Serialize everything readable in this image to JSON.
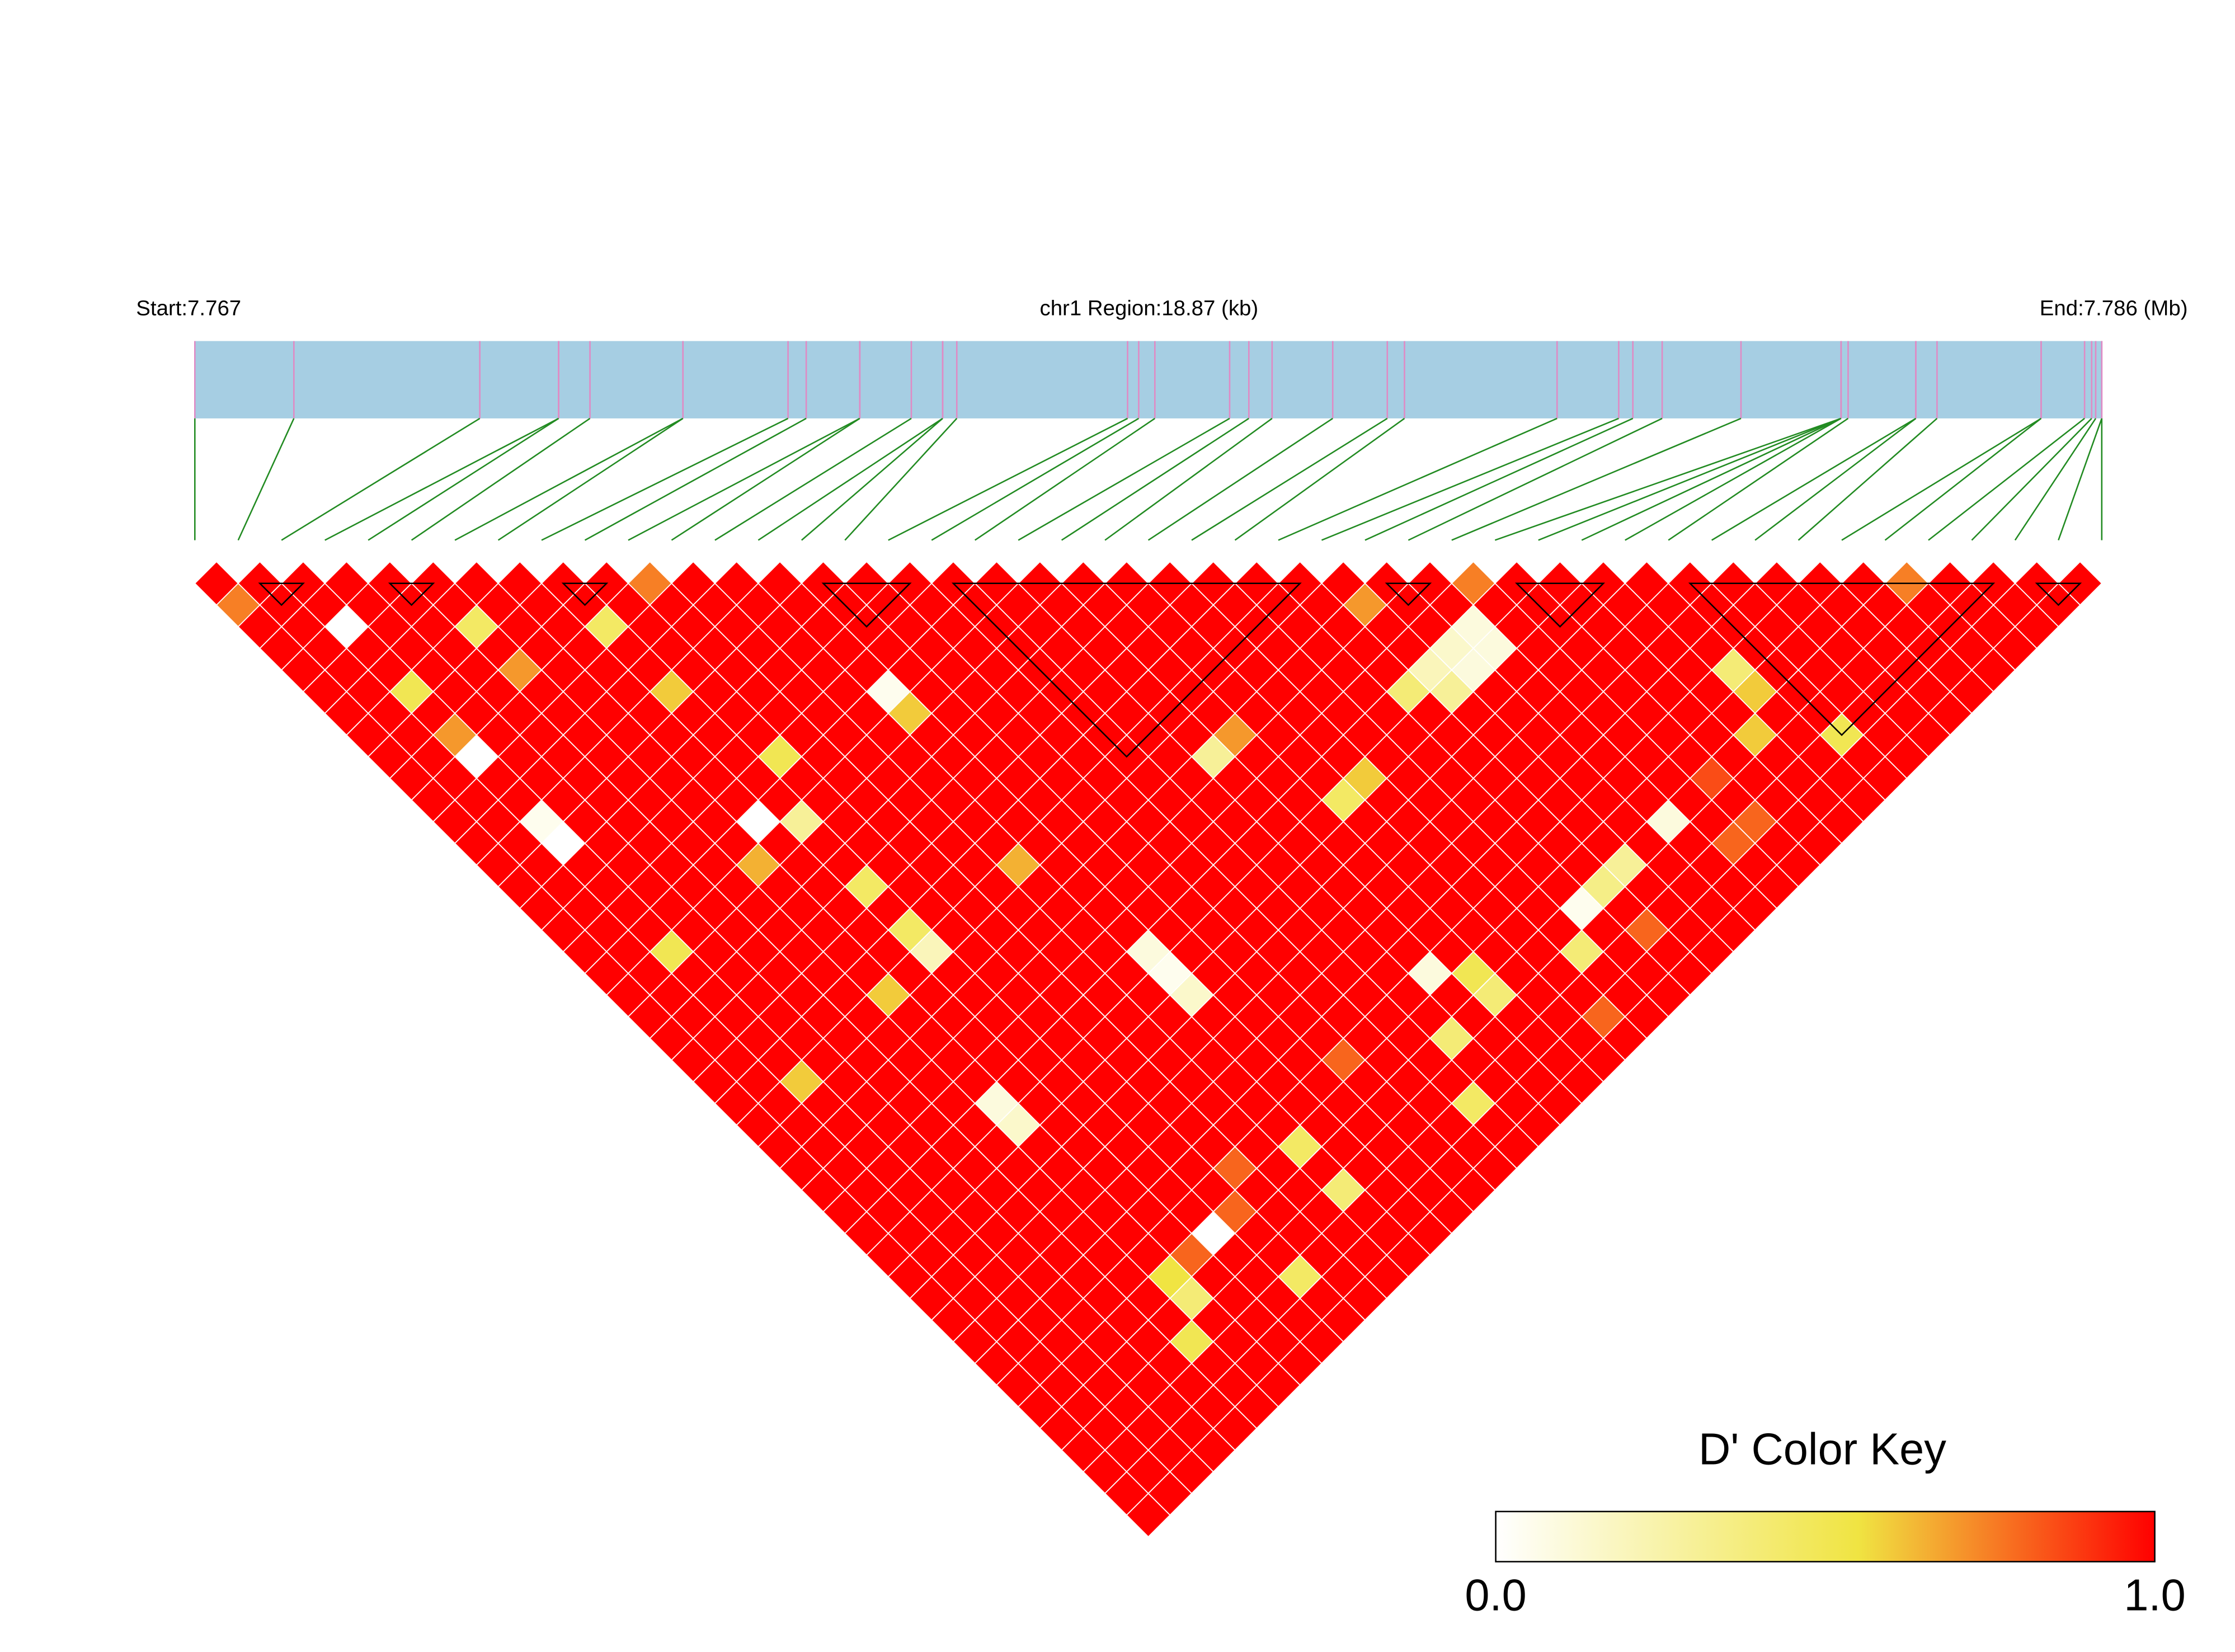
{
  "chart_data": {
    "type": "ld_heatmap",
    "start_label": "Start:7.767",
    "region_label": "chr1 Region:18.87 (kb)",
    "end_label": "End:7.786 (Mb)",
    "xlim": [
      0,
      18.87
    ],
    "snp_positions_kb": [
      0,
      0.98,
      2.82,
      3.6,
      3.6,
      3.91,
      4.83,
      4.83,
      5.87,
      6.05,
      6.58,
      6.58,
      7.09,
      7.4,
      7.4,
      7.54,
      9.23,
      9.34,
      9.5,
      10.24,
      10.43,
      10.66,
      11.26,
      11.8,
      11.97,
      13.48,
      14.09,
      14.23,
      14.52,
      15.3,
      16.29,
      16.29,
      16.29,
      16.29,
      16.36,
      17.03,
      17.03,
      17.24,
      18.27,
      18.27,
      18.7,
      18.77,
      18.81,
      18.87,
      18.87
    ],
    "bar_color": "#a6cee3",
    "snp_line_color": "#e08ac4",
    "connector_color": "#228b22",
    "block_color": "#000000",
    "blocks": [
      [
        1,
        3
      ],
      [
        4,
        6
      ],
      [
        8,
        10
      ],
      [
        14,
        17
      ],
      [
        17,
        26
      ],
      [
        27,
        29
      ],
      [
        30,
        33
      ],
      [
        34,
        42
      ],
      [
        42,
        44
      ]
    ],
    "colormap": [
      [
        0,
        "#ffffff"
      ],
      [
        0.55,
        "#f0e442"
      ],
      [
        1,
        "#ff0000"
      ]
    ],
    "colorbar_title": "D' Color Key",
    "colorbar_lim": [
      0,
      1
    ],
    "colorbar_ticks": [
      {
        "value": 0,
        "label": "0.0"
      },
      {
        "value": 1,
        "label": "1.0"
      }
    ],
    "values": [
      [
        1,
        1,
        1,
        1,
        1,
        1,
        1,
        1,
        1,
        1,
        0.75,
        1,
        1,
        1,
        1,
        1,
        1,
        1,
        1,
        1,
        1,
        1,
        1,
        1,
        1,
        1,
        1,
        1,
        1,
        0.75,
        1,
        1,
        1,
        1,
        1,
        1,
        1,
        1,
        1,
        0.75,
        1,
        1,
        1,
        1
      ],
      [
        0.75,
        1,
        1,
        1,
        1,
        1,
        1,
        1,
        1,
        1,
        1,
        1,
        1,
        1,
        1,
        1,
        1,
        1,
        1,
        1,
        1,
        1,
        1,
        1,
        1,
        1,
        0.7,
        1,
        1,
        1,
        1,
        1,
        1,
        1,
        1,
        1,
        1,
        1,
        1,
        1,
        1,
        1,
        1
      ],
      [
        1,
        1,
        0,
        1,
        1,
        0.45,
        1,
        1,
        0.45,
        1,
        1,
        1,
        1,
        1,
        1,
        1,
        1,
        1,
        1,
        1,
        1,
        1,
        1,
        1,
        1,
        1,
        1,
        1,
        0.1,
        1,
        1,
        1,
        1,
        1,
        1,
        1,
        1,
        1,
        1,
        1,
        1,
        1
      ],
      [
        1,
        1,
        1,
        1,
        1,
        1,
        1,
        1,
        1,
        1,
        1,
        1,
        1,
        1,
        1,
        1,
        1,
        1,
        1,
        1,
        1,
        1,
        1,
        1,
        1,
        1,
        1,
        0.15,
        0.1,
        1,
        1,
        1,
        1,
        1,
        1,
        1,
        1,
        1,
        1,
        1,
        1
      ],
      [
        1,
        1,
        1,
        1,
        1,
        0.7,
        1,
        1,
        1,
        1,
        1,
        1,
        1,
        1,
        1,
        1,
        1,
        1,
        1,
        1,
        1,
        1,
        1,
        1,
        1,
        1,
        0.2,
        0.1,
        1,
        1,
        1,
        1,
        1,
        0.4,
        1,
        1,
        1,
        1,
        1,
        1
      ],
      [
        1,
        1,
        0.5,
        1,
        1,
        1,
        1,
        1,
        0.6,
        1,
        1,
        1,
        1,
        0.05,
        1,
        1,
        1,
        1,
        1,
        1,
        1,
        1,
        1,
        1,
        1,
        0.4,
        0.3,
        1,
        1,
        1,
        1,
        1,
        1,
        0.6,
        1,
        1,
        1,
        1,
        1
      ],
      [
        1,
        1,
        1,
        1,
        1,
        1,
        1,
        1,
        1,
        1,
        1,
        1,
        1,
        0.6,
        1,
        1,
        1,
        1,
        1,
        1,
        1,
        1,
        1,
        1,
        1,
        1,
        1,
        1,
        1,
        1,
        1,
        1,
        1,
        1,
        1,
        1,
        1,
        1
      ],
      [
        1,
        1,
        0.7,
        1,
        1,
        1,
        1,
        1,
        1,
        1,
        1,
        1,
        1,
        1,
        1,
        1,
        1,
        1,
        1,
        1,
        0.7,
        1,
        1,
        1,
        1,
        1,
        1,
        1,
        1,
        1,
        1,
        1,
        0.6,
        1,
        0.5,
        1,
        1
      ],
      [
        1,
        1,
        0,
        1,
        1,
        1,
        1,
        1,
        1,
        0.5,
        1,
        1,
        1,
        1,
        1,
        1,
        1,
        1,
        1,
        0.3,
        1,
        1,
        1,
        1,
        1,
        1,
        1,
        1,
        1,
        1,
        1,
        1,
        1,
        1,
        1,
        1
      ],
      [
        1,
        1,
        1,
        1,
        1,
        1,
        1,
        1,
        1,
        1,
        1,
        1,
        1,
        1,
        1,
        1,
        1,
        1,
        1,
        1,
        1,
        1,
        0.6,
        1,
        1,
        1,
        1,
        1,
        1,
        1,
        0.85,
        1,
        1,
        1,
        1
      ],
      [
        1,
        1,
        1,
        1,
        1,
        1,
        1,
        1,
        1,
        1,
        1,
        1,
        1,
        1,
        1,
        1,
        1,
        1,
        1,
        1,
        1,
        0.45,
        1,
        1,
        1,
        1,
        1,
        1,
        1,
        1,
        1,
        1,
        1,
        1
      ],
      [
        1,
        1,
        0.05,
        1,
        1,
        1,
        1,
        0,
        0.3,
        1,
        1,
        1,
        1,
        1,
        1,
        1,
        1,
        1,
        1,
        1,
        1,
        1,
        1,
        1,
        1,
        1,
        1,
        1,
        0.1,
        1,
        0.8,
        1,
        1
      ],
      [
        1,
        1,
        0,
        1,
        1,
        1,
        1,
        1,
        1,
        1,
        1,
        1,
        1,
        1,
        1,
        1,
        1,
        1,
        1,
        1,
        1,
        1,
        1,
        1,
        1,
        1,
        1,
        1,
        1,
        0.8,
        1,
        1
      ],
      [
        1,
        1,
        1,
        1,
        1,
        1,
        0.65,
        1,
        1,
        1,
        1,
        1,
        0.65,
        1,
        1,
        1,
        1,
        1,
        1,
        1,
        1,
        1,
        1,
        1,
        1,
        1,
        0.3,
        1,
        1,
        1,
        1
      ],
      [
        1,
        1,
        1,
        1,
        1,
        1,
        1,
        1,
        0.45,
        1,
        1,
        1,
        1,
        1,
        1,
        1,
        1,
        1,
        1,
        1,
        1,
        1,
        1,
        1,
        1,
        0.35,
        1,
        1,
        1,
        1
      ],
      [
        1,
        1,
        1,
        1,
        1,
        1,
        1,
        1,
        1,
        1,
        1,
        1,
        1,
        1,
        1,
        1,
        1,
        1,
        1,
        1,
        1,
        1,
        1,
        1,
        0.05,
        1,
        1,
        1,
        1
      ],
      [
        1,
        1,
        1,
        1,
        1,
        1,
        1,
        1,
        0.45,
        1,
        1,
        1,
        1,
        1,
        1,
        1,
        1,
        1,
        1,
        1,
        1,
        1,
        1,
        1,
        1,
        0.8,
        1,
        1
      ],
      [
        1,
        1,
        0.5,
        1,
        1,
        1,
        1,
        1,
        0.2,
        1,
        1,
        1,
        1,
        0.1,
        1,
        1,
        1,
        1,
        1,
        1,
        1,
        1,
        1,
        0.4,
        1,
        1,
        1
      ],
      [
        1,
        1,
        1,
        1,
        1,
        1,
        1,
        1,
        1,
        1,
        1,
        1,
        1,
        0.05,
        1,
        1,
        1,
        1,
        1,
        0.1,
        0.5,
        1,
        1,
        1,
        1,
        1
      ],
      [
        1,
        1,
        1,
        1,
        1,
        1,
        0.6,
        1,
        1,
        1,
        1,
        1,
        1,
        0.15,
        1,
        1,
        1,
        1,
        1,
        1,
        0.4,
        1,
        1,
        1,
        1
      ],
      [
        1,
        1,
        1,
        1,
        1,
        1,
        1,
        1,
        1,
        1,
        1,
        1,
        1,
        1,
        1,
        1,
        1,
        1,
        1,
        1,
        1,
        1,
        0.8,
        1
      ],
      [
        1,
        1,
        1,
        1,
        1,
        1,
        1,
        1,
        1,
        1,
        1,
        1,
        1,
        1,
        1,
        1,
        1,
        1,
        0.4,
        1,
        1,
        1,
        1
      ],
      [
        1,
        1,
        1,
        1,
        1,
        1,
        1,
        1,
        1,
        1,
        1,
        1,
        1,
        1,
        1,
        0.8,
        1,
        1,
        1,
        1,
        1,
        1
      ],
      [
        1,
        1,
        0.6,
        1,
        1,
        1,
        1,
        1,
        1,
        1,
        1,
        1,
        1,
        1,
        1,
        1,
        1,
        1,
        1,
        1,
        1
      ],
      [
        1,
        1,
        1,
        1,
        1,
        1,
        0.1,
        1,
        1,
        1,
        1,
        1,
        1,
        1,
        1,
        1,
        1,
        0.45,
        1,
        1
      ],
      [
        1,
        1,
        1,
        1,
        1,
        1,
        0.15,
        1,
        1,
        1,
        1,
        1,
        1,
        1,
        1,
        1,
        1,
        1,
        1
      ],
      [
        1,
        1,
        1,
        1,
        1,
        1,
        1,
        1,
        1,
        1,
        1,
        1,
        0.45,
        1,
        1,
        1,
        1,
        1
      ],
      [
        1,
        1,
        1,
        1,
        1,
        1,
        1,
        1,
        1,
        1,
        0.8,
        1,
        1,
        1,
        1,
        1,
        1
      ],
      [
        1,
        1,
        1,
        1,
        1,
        1,
        1,
        1,
        1,
        1,
        1,
        1,
        0.4,
        1,
        1,
        1
      ],
      [
        1,
        1,
        1,
        1,
        1,
        1,
        1,
        1,
        1,
        0.8,
        1,
        1,
        1,
        1,
        1
      ],
      [
        1,
        1,
        1,
        1,
        1,
        1,
        1,
        1,
        0,
        1,
        1,
        1,
        1,
        1
      ],
      [
        1,
        1,
        1,
        1,
        1,
        1,
        1,
        0.8,
        1,
        1,
        1,
        1,
        1
      ],
      [
        1,
        1,
        1,
        1,
        1,
        1,
        0.55,
        1,
        1,
        0.45,
        1,
        1
      ],
      [
        1,
        1,
        1,
        1,
        1,
        1,
        0.4,
        1,
        1,
        1,
        1
      ],
      [
        1,
        1,
        1,
        1,
        1,
        1,
        1,
        1,
        1,
        1
      ],
      [
        1,
        1,
        1,
        1,
        1,
        0.5,
        1,
        1,
        1
      ],
      [
        1,
        1,
        1,
        1,
        1,
        1,
        1,
        1
      ],
      [
        1,
        1,
        1,
        1,
        1,
        1,
        1
      ],
      [
        1,
        1,
        1,
        1,
        1,
        1
      ],
      [
        1,
        1,
        1,
        1,
        1
      ],
      [
        1,
        1,
        1,
        1
      ],
      [
        1,
        1,
        1
      ],
      [
        1,
        1
      ],
      [
        1
      ]
    ]
  }
}
